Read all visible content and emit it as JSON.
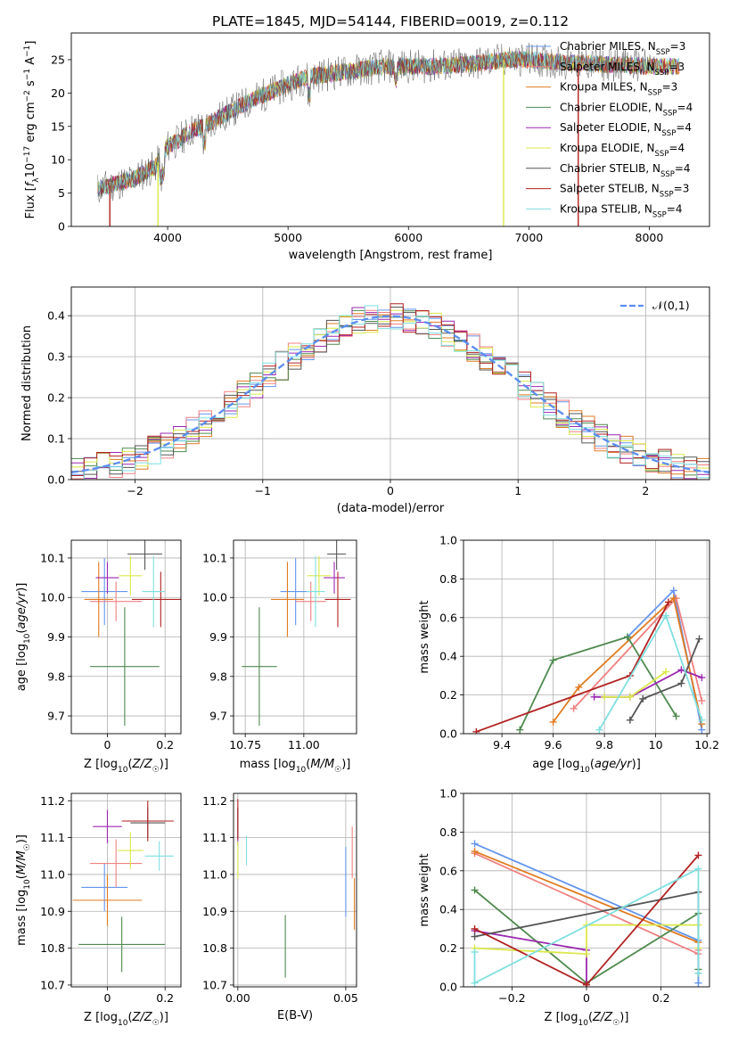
{
  "figure": {
    "title": "PLATE=1845, MJD=54144, FIBERID=0019, z=0.112"
  },
  "colors": {
    "Chabrier MILES": "#6495ed",
    "Salpeter MILES": "#f08080",
    "Kroupa MILES": "#e07b20",
    "Chabrier ELODIE": "#4f8a4f",
    "Salpeter ELODIE": "#9b27b0",
    "Kroupa ELODIE": "#dbe84a",
    "Chabrier STELIB": "#555555",
    "Salpeter STELIB": "#b22222",
    "Kroupa STELIB": "#7fdfe0"
  },
  "chart_data": [
    {
      "id": "spectrum",
      "type": "line",
      "xlabel": "wavelength [Angstrom, rest frame]",
      "ylabel": "Flux [f_λ10^-17 erg cm^-2 s^-1 A^-1]",
      "xlim": [
        3200,
        8500
      ],
      "ylim": [
        0,
        29
      ],
      "xticks": [
        4000,
        5000,
        6000,
        7000,
        8000
      ],
      "yticks": [
        0,
        5,
        10,
        15,
        20,
        25
      ],
      "legend_position": "right",
      "legend": [
        {
          "name": "Chabrier MILES",
          "label": "Chabrier MILES, N",
          "sub": "SSP",
          "n": "=3"
        },
        {
          "name": "Salpeter MILES",
          "label": "Salpeter MILES, N",
          "sub": "SSP",
          "n": "=3"
        },
        {
          "name": "Kroupa MILES",
          "label": "Kroupa MILES, N",
          "sub": "SSP",
          "n": "=3"
        },
        {
          "name": "Chabrier ELODIE",
          "label": "Chabrier ELODIE, N",
          "sub": "SSP",
          "n": "=4"
        },
        {
          "name": "Salpeter ELODIE",
          "label": "Salpeter ELODIE, N",
          "sub": "SSP",
          "n": "=4"
        },
        {
          "name": "Kroupa ELODIE",
          "label": "Kroupa ELODIE, N",
          "sub": "SSP",
          "n": "=4"
        },
        {
          "name": "Chabrier STELIB",
          "label": "Chabrier STELIB, N",
          "sub": "SSP",
          "n": "=4"
        },
        {
          "name": "Salpeter STELIB",
          "label": "Salpeter STELIB, N",
          "sub": "SSP",
          "n": "=3"
        },
        {
          "name": "Kroupa STELIB",
          "label": "Kroupa STELIB, N",
          "sub": "SSP",
          "n": "=4"
        }
      ],
      "continuum": {
        "x": [
          3400,
          3500,
          3600,
          3700,
          3800,
          3900,
          3950,
          4000,
          4100,
          4200,
          4300,
          4500,
          4700,
          4900,
          5100,
          5200,
          5400,
          5600,
          5800,
          6000,
          6200,
          6400,
          6600,
          6800,
          7000,
          7200,
          7400,
          7600,
          7800,
          8000,
          8300
        ],
        "y": [
          5.5,
          6,
          6.5,
          7,
          8,
          9,
          10.5,
          12,
          13,
          14.5,
          15,
          17,
          19,
          20.5,
          22,
          22.5,
          23,
          23.5,
          24,
          24,
          24,
          24.2,
          24.5,
          25,
          25,
          24.7,
          24.5,
          24.3,
          24.2,
          24,
          24
        ]
      },
      "spikes_down": [
        {
          "series": "Salpeter STELIB",
          "x": 3520
        },
        {
          "series": "Kroupa ELODIE",
          "x": 3920
        },
        {
          "series": "Kroupa ELODIE",
          "x": 6790
        },
        {
          "series": "Salpeter STELIB",
          "x": 7410
        }
      ]
    },
    {
      "id": "residuals",
      "type": "histogram",
      "xlabel": "(data-model)/error",
      "ylabel": "Normed distribution",
      "xlim": [
        -2.5,
        2.5
      ],
      "ylim": [
        0,
        0.47
      ],
      "xticks": [
        -2,
        -1,
        0,
        1,
        2
      ],
      "yticks": [
        0.0,
        0.1,
        0.2,
        0.3,
        0.4
      ],
      "grid": true,
      "bin_width": 0.1,
      "reference_curve": {
        "name": "𝒩(0, 1)",
        "label": "𝒩(0,1)",
        "style": "dashed",
        "color": "#5b8def"
      },
      "legend_position": "top-right",
      "series": [
        {
          "name": "Chabrier MILES",
          "seed": 1
        },
        {
          "name": "Salpeter MILES",
          "seed": 2
        },
        {
          "name": "Kroupa MILES",
          "seed": 3
        },
        {
          "name": "Chabrier ELODIE",
          "seed": 4
        },
        {
          "name": "Salpeter ELODIE",
          "seed": 5
        },
        {
          "name": "Kroupa ELODIE",
          "seed": 6
        },
        {
          "name": "Chabrier STELIB",
          "seed": 7
        },
        {
          "name": "Salpeter STELIB",
          "seed": 8
        },
        {
          "name": "Kroupa STELIB",
          "seed": 9
        }
      ]
    },
    {
      "id": "age-vs-Z",
      "type": "scatter",
      "xlabel": "Z [log10(Z/Z☉)]",
      "ylabel": "age  [log10(age/yr)]",
      "xlim": [
        -0.125,
        0.255
      ],
      "ylim": [
        9.655,
        10.145
      ],
      "xticks": [
        0.0,
        0.2
      ],
      "yticks": [
        9.7,
        9.8,
        9.9,
        10.0,
        10.1
      ],
      "grid": true,
      "points": [
        {
          "series": "Chabrier MILES",
          "x": -0.01,
          "y": 10.015,
          "xerr": 0.08,
          "yerr": 0.085
        },
        {
          "series": "Salpeter MILES",
          "x": 0.03,
          "y": 9.99,
          "xerr": 0.09,
          "yerr": 0.05
        },
        {
          "series": "Kroupa MILES",
          "x": -0.03,
          "y": 9.995,
          "xerr": 0.05,
          "yerr": 0.095
        },
        {
          "series": "Chabrier ELODIE",
          "x": 0.06,
          "y": 9.825,
          "xerr": 0.12,
          "yerr": 0.15
        },
        {
          "series": "Salpeter ELODIE",
          "x": 0.0,
          "y": 10.05,
          "xerr": 0.04,
          "yerr": 0.04
        },
        {
          "series": "Kroupa ELODIE",
          "x": 0.08,
          "y": 10.055,
          "xerr": 0.04,
          "yerr": 0.05
        },
        {
          "series": "Chabrier STELIB",
          "x": 0.13,
          "y": 10.11,
          "xerr": 0.06,
          "yerr": 0.04
        },
        {
          "series": "Salpeter STELIB",
          "x": 0.185,
          "y": 9.995,
          "xerr": 0.1,
          "yerr": 0.07
        },
        {
          "series": "Kroupa STELIB",
          "x": 0.16,
          "y": 10.015,
          "xerr": 0.04,
          "yerr": 0.09
        }
      ]
    },
    {
      "id": "age-vs-mass",
      "type": "scatter",
      "xlabel": "mass [log10(M/M☉)]",
      "ylabel": "",
      "xlim": [
        10.7,
        11.225
      ],
      "ylim": [
        9.655,
        10.145
      ],
      "xticks": [
        10.75,
        11.0
      ],
      "xtick_labels": [
        "10.75",
        "11.00"
      ],
      "yticks": [
        9.7,
        9.8,
        9.9,
        10.0,
        10.1
      ],
      "grid": true,
      "points": [
        {
          "series": "Chabrier MILES",
          "x": 10.965,
          "y": 10.015,
          "xerr": 0.065,
          "yerr": 0.085
        },
        {
          "series": "Salpeter MILES",
          "x": 11.03,
          "y": 9.99,
          "xerr": 0.065,
          "yerr": 0.05
        },
        {
          "series": "Kroupa MILES",
          "x": 10.93,
          "y": 9.995,
          "xerr": 0.07,
          "yerr": 0.095
        },
        {
          "series": "Chabrier ELODIE",
          "x": 10.81,
          "y": 9.825,
          "xerr": 0.075,
          "yerr": 0.15
        },
        {
          "series": "Salpeter ELODIE",
          "x": 11.13,
          "y": 10.05,
          "xerr": 0.045,
          "yerr": 0.04
        },
        {
          "series": "Kroupa ELODIE",
          "x": 11.065,
          "y": 10.055,
          "xerr": 0.05,
          "yerr": 0.05
        },
        {
          "series": "Chabrier STELIB",
          "x": 11.14,
          "y": 10.11,
          "xerr": 0.04,
          "yerr": 0.04
        },
        {
          "series": "Salpeter STELIB",
          "x": 11.145,
          "y": 9.995,
          "xerr": 0.055,
          "yerr": 0.07
        },
        {
          "series": "Kroupa STELIB",
          "x": 11.05,
          "y": 10.015,
          "xerr": 0.04,
          "yerr": 0.09
        }
      ]
    },
    {
      "id": "massweight-vs-age",
      "type": "line",
      "xlabel": "age  [log10(age/yr)]",
      "ylabel": "mass weight",
      "xlim": [
        9.25,
        10.21
      ],
      "ylim": [
        0,
        1
      ],
      "xticks": [
        9.4,
        9.6,
        9.8,
        10.0,
        10.2
      ],
      "yticks": [
        0.0,
        0.2,
        0.4,
        0.6,
        0.8,
        1.0
      ],
      "grid": true,
      "series": [
        {
          "name": "Chabrier MILES",
          "x": [
            9.89,
            10.07,
            10.18
          ],
          "y": [
            0.5,
            0.74,
            0.02
          ]
        },
        {
          "name": "Salpeter MILES",
          "x": [
            9.68,
            10.08,
            10.18
          ],
          "y": [
            0.13,
            0.7,
            0.17
          ]
        },
        {
          "name": "Kroupa MILES",
          "x": [
            9.6,
            9.7,
            10.07,
            10.18
          ],
          "y": [
            0.06,
            0.24,
            0.7,
            0.05
          ]
        },
        {
          "name": "Chabrier ELODIE",
          "x": [
            9.47,
            9.6,
            9.89,
            10.08
          ],
          "y": [
            0.02,
            0.38,
            0.5,
            0.09
          ]
        },
        {
          "name": "Salpeter ELODIE",
          "x": [
            9.76,
            9.9,
            10.1,
            10.18
          ],
          "y": [
            0.19,
            0.19,
            0.33,
            0.29
          ]
        },
        {
          "name": "Kroupa ELODIE",
          "x": [
            9.8,
            9.9,
            10.04
          ],
          "y": [
            0.19,
            0.19,
            0.32
          ]
        },
        {
          "name": "Chabrier STELIB",
          "x": [
            9.9,
            9.95,
            10.1,
            10.17
          ],
          "y": [
            0.07,
            0.18,
            0.26,
            0.49
          ]
        },
        {
          "name": "Salpeter STELIB",
          "x": [
            9.3,
            9.9,
            10.05
          ],
          "y": [
            0.01,
            0.3,
            0.68
          ]
        },
        {
          "name": "Kroupa STELIB",
          "x": [
            9.78,
            10.04,
            10.18
          ],
          "y": [
            0.02,
            0.61,
            0.07
          ]
        }
      ]
    },
    {
      "id": "mass-vs-Z",
      "type": "scatter",
      "xlabel": "Z [log10(Z/Z☉)]",
      "ylabel": "mass [log10(M/M☉)]",
      "xlim": [
        -0.125,
        0.255
      ],
      "ylim": [
        10.695,
        11.22
      ],
      "xticks": [
        0.0,
        0.2
      ],
      "yticks": [
        10.7,
        10.8,
        10.9,
        11.0,
        11.1,
        11.2
      ],
      "grid": true,
      "points": [
        {
          "series": "Chabrier MILES",
          "x": -0.01,
          "y": 10.965,
          "xerr": 0.08,
          "yerr": 0.065
        },
        {
          "series": "Salpeter MILES",
          "x": 0.03,
          "y": 11.03,
          "xerr": 0.09,
          "yerr": 0.065
        },
        {
          "series": "Kroupa MILES",
          "x": 0.0,
          "y": 10.93,
          "xerr": 0.12,
          "yerr": 0.07
        },
        {
          "series": "Chabrier ELODIE",
          "x": 0.05,
          "y": 10.81,
          "xerr": 0.15,
          "yerr": 0.075
        },
        {
          "series": "Salpeter ELODIE",
          "x": 0.0,
          "y": 11.13,
          "xerr": 0.05,
          "yerr": 0.045
        },
        {
          "series": "Kroupa ELODIE",
          "x": 0.08,
          "y": 11.065,
          "xerr": 0.045,
          "yerr": 0.05
        },
        {
          "series": "Chabrier STELIB",
          "x": 0.14,
          "y": 11.14,
          "xerr": 0.06,
          "yerr": 0.04
        },
        {
          "series": "Salpeter STELIB",
          "x": 0.14,
          "y": 11.145,
          "xerr": 0.09,
          "yerr": 0.055
        },
        {
          "series": "Kroupa STELIB",
          "x": 0.18,
          "y": 11.05,
          "xerr": 0.05,
          "yerr": 0.04
        }
      ]
    },
    {
      "id": "mass-vs-ebv",
      "type": "scatter",
      "xlabel": "E(B-V)",
      "ylabel": "",
      "xlim": [
        -0.002,
        0.055
      ],
      "ylim": [
        10.695,
        11.22
      ],
      "xticks": [
        0.0,
        0.05
      ],
      "xtick_labels": [
        "0.00",
        "0.05"
      ],
      "yticks": [
        10.7,
        10.8,
        10.9,
        11.0,
        11.1,
        11.2
      ],
      "grid": true,
      "points": [
        {
          "series": "Chabrier MILES",
          "x": 0.05,
          "y": 10.98,
          "xerr": 0,
          "yerr": 0.095
        },
        {
          "series": "Salpeter MILES",
          "x": 0.053,
          "y": 11.06,
          "xerr": 0,
          "yerr": 0.07
        },
        {
          "series": "Kroupa MILES",
          "x": 0.054,
          "y": 10.92,
          "xerr": 0,
          "yerr": 0.07
        },
        {
          "series": "Chabrier ELODIE",
          "x": 0.022,
          "y": 10.805,
          "xerr": 0,
          "yerr": 0.085
        },
        {
          "series": "Salpeter ELODIE",
          "x": 0.0,
          "y": 11.13,
          "xerr": 0,
          "yerr": 0.05
        },
        {
          "series": "Kroupa ELODIE",
          "x": 0.0,
          "y": 11.04,
          "xerr": 0,
          "yerr": 0.05
        },
        {
          "series": "Chabrier STELIB",
          "x": 0.0,
          "y": 11.14,
          "xerr": 0,
          "yerr": 0.04
        },
        {
          "series": "Salpeter STELIB",
          "x": 0.0,
          "y": 11.15,
          "xerr": 0,
          "yerr": 0.055
        },
        {
          "series": "Kroupa STELIB",
          "x": 0.004,
          "y": 11.065,
          "xerr": 0,
          "yerr": 0.04
        }
      ]
    },
    {
      "id": "massweight-vs-Z",
      "type": "line",
      "xlabel": "Z [log10(Z/Z☉)]",
      "ylabel": "mass weight",
      "xlim": [
        -0.33,
        0.33
      ],
      "ylim": [
        0,
        1
      ],
      "xticks": [
        -0.2,
        0.0,
        0.2
      ],
      "yticks": [
        0.0,
        0.2,
        0.4,
        0.6,
        0.8,
        1.0
      ],
      "grid": true,
      "series": [
        {
          "name": "Chabrier MILES",
          "x": [
            -0.3,
            0.3,
            0.3
          ],
          "y": [
            0.74,
            0.24,
            0.02
          ]
        },
        {
          "name": "Salpeter MILES",
          "x": [
            -0.3,
            0.3,
            0.3
          ],
          "y": [
            0.69,
            0.17,
            0.19
          ]
        },
        {
          "name": "Kroupa MILES",
          "x": [
            -0.3,
            0.3,
            0.3
          ],
          "y": [
            0.7,
            0.23,
            0.07
          ]
        },
        {
          "name": "Chabrier ELODIE",
          "x": [
            -0.3,
            0.0,
            0.3,
            0.3
          ],
          "y": [
            0.5,
            0.02,
            0.38,
            0.09
          ]
        },
        {
          "name": "Salpeter ELODIE",
          "x": [
            -0.3,
            0.0,
            0.0
          ],
          "y": [
            0.29,
            0.19,
            0.01
          ]
        },
        {
          "name": "Kroupa ELODIE",
          "x": [
            -0.3,
            0.0,
            0.0,
            0.3,
            0.3
          ],
          "y": [
            0.2,
            0.17,
            0.32,
            0.32,
            0.2
          ]
        },
        {
          "name": "Chabrier STELIB",
          "x": [
            -0.3,
            0.3,
            0.3
          ],
          "y": [
            0.26,
            0.49,
            0.07
          ]
        },
        {
          "name": "Salpeter STELIB",
          "x": [
            -0.3,
            0.0,
            0.3
          ],
          "y": [
            0.3,
            0.01,
            0.68
          ]
        },
        {
          "name": "Kroupa STELIB",
          "x": [
            -0.3,
            -0.3,
            0.3,
            0.3
          ],
          "y": [
            0.18,
            0.02,
            0.61,
            0.07
          ]
        }
      ]
    }
  ]
}
